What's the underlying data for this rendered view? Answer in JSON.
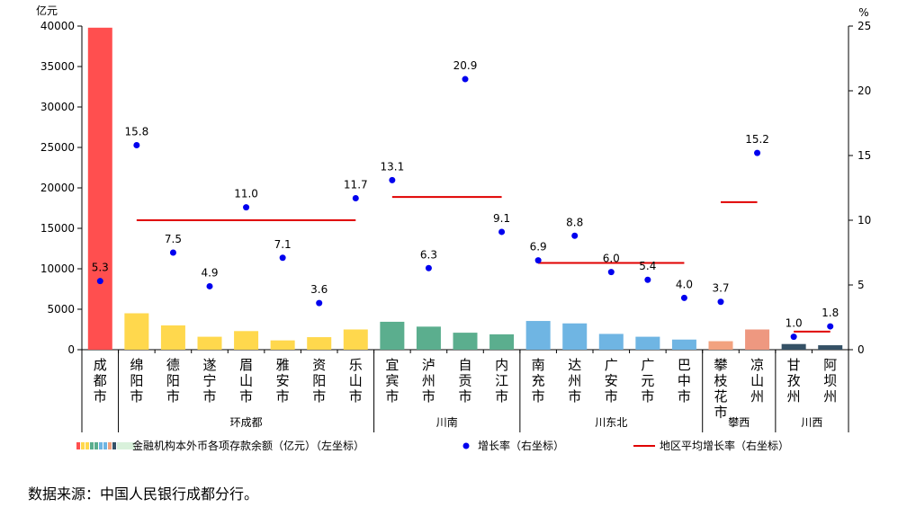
{
  "chart_data": {
    "type": "bar",
    "y_left_unit": "亿元",
    "y_right_unit": "%",
    "ylim_left": [
      0,
      40000
    ],
    "ylim_right": [
      0,
      25
    ],
    "yticks_left": [
      0,
      5000,
      10000,
      15000,
      20000,
      25000,
      30000,
      35000,
      40000
    ],
    "yticks_right": [
      0,
      5,
      10,
      15,
      20,
      25
    ],
    "categories": [
      "成都市",
      "绵阳市",
      "德阳市",
      "遂宁市",
      "眉山市",
      "雅安市",
      "资阳市",
      "乐山市",
      "宜宾市",
      "泸州市",
      "自贡市",
      "内江市",
      "南充市",
      "达州市",
      "广安市",
      "广元市",
      "巴中市",
      "攀枝花市",
      "凉山州",
      "甘孜州",
      "阿坝州"
    ],
    "series": [
      {
        "name": "金融机构本外币各项存款余额（亿元）（左坐标）",
        "type": "bar",
        "axis": "left",
        "values": [
          39800,
          4500,
          3000,
          1600,
          2300,
          1150,
          1550,
          2500,
          3450,
          2850,
          2100,
          1900,
          3550,
          3250,
          1950,
          1600,
          1250,
          1050,
          2500,
          700,
          550
        ],
        "colors": [
          "#FF4F4F",
          "#FFD84D",
          "#FFD84D",
          "#FFD84D",
          "#FFD84D",
          "#FFD84D",
          "#FFD84D",
          "#FFD84D",
          "#5BAE8E",
          "#5BAE8E",
          "#5BAE8E",
          "#5BAE8E",
          "#6FB5E3",
          "#6FB5E3",
          "#6FB5E3",
          "#6FB5E3",
          "#6FB5E3",
          "#F2A27F",
          "#EE9880",
          "#355166",
          "#355166"
        ]
      },
      {
        "name": "增长率（右坐标）",
        "type": "scatter",
        "axis": "right",
        "color": "#0000EE",
        "values": [
          5.3,
          15.8,
          7.5,
          4.9,
          11.0,
          7.1,
          3.6,
          11.7,
          13.1,
          6.3,
          20.9,
          9.1,
          6.9,
          8.8,
          6.0,
          5.4,
          4.0,
          3.7,
          15.2,
          1.0,
          1.8
        ],
        "labels": [
          "5.3",
          "15.8",
          "7.5",
          "4.9",
          "11.0",
          "7.1",
          "3.6",
          "11.7",
          "13.1",
          "6.3",
          "20.9",
          "9.1",
          "6.9",
          "8.8",
          "6.0",
          "5.4",
          "4.0",
          "3.7",
          "15.2",
          "1.0",
          "1.8"
        ]
      },
      {
        "name": "地区平均增长率（右坐标）",
        "type": "segments",
        "axis": "right",
        "color": "#E00000",
        "segments": [
          {
            "from": 1,
            "to": 7,
            "value": 10.0
          },
          {
            "from": 8,
            "to": 11,
            "value": 11.8
          },
          {
            "from": 12,
            "to": 16,
            "value": 6.7
          },
          {
            "from": 17,
            "to": 18,
            "value": 11.4
          },
          {
            "from": 19,
            "to": 20,
            "value": 1.4
          }
        ]
      }
    ],
    "groups": [
      {
        "label": "环成都",
        "from": 1,
        "to": 7
      },
      {
        "label": "川南",
        "from": 8,
        "to": 11
      },
      {
        "label": "川东北",
        "from": 12,
        "to": 16
      },
      {
        "label": "攀西",
        "from": 17,
        "to": 18
      },
      {
        "label": "川西",
        "from": 19,
        "to": 20
      }
    ],
    "legend_position": "bottom",
    "legend_swatch_colors": [
      "#FF4F4F",
      "#FFD84D",
      "#FFD84D",
      "#5BAE8E",
      "#5BAE8E",
      "#6FB5E3",
      "#6FB5E3",
      "#F2A27F",
      "#355166",
      "#D9F1DB"
    ]
  },
  "source_note": "数据来源：中国人民银行成都分行。"
}
